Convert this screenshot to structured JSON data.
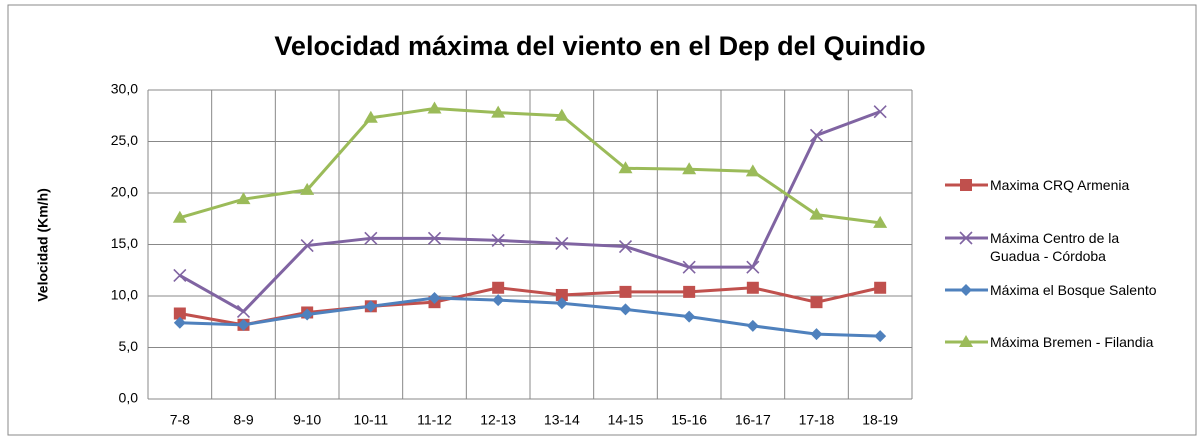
{
  "chart_data": {
    "type": "line",
    "title": "Velocidad máxima del viento en el Dep del Quindio",
    "y_label": "Velocidad  (Km/h)",
    "categories": [
      "7-8",
      "8-9",
      "9-10",
      "10-11",
      "11-12",
      "12-13",
      "13-14",
      "14-15",
      "15-16",
      "16-17",
      "17-18",
      "18-19"
    ],
    "series": [
      {
        "name": "Maxima CRQ Armenia",
        "color": "#c0504d",
        "marker": "square",
        "values": [
          8.3,
          7.2,
          8.4,
          9.0,
          9.4,
          10.8,
          10.1,
          10.4,
          10.4,
          10.8,
          9.4,
          10.8
        ]
      },
      {
        "name": "Máxima Centro de la Guadua - Córdoba",
        "color": "#8064a2",
        "marker": "x",
        "values": [
          12.0,
          8.5,
          14.9,
          15.6,
          15.6,
          15.4,
          15.1,
          14.8,
          12.8,
          12.8,
          25.6,
          27.9
        ]
      },
      {
        "name": "Máxima el Bosque Salento",
        "color": "#4f81bd",
        "marker": "diamond",
        "values": [
          7.4,
          7.2,
          8.2,
          9.0,
          9.8,
          9.6,
          9.3,
          8.7,
          8.0,
          7.1,
          6.3,
          6.1
        ]
      },
      {
        "name": "Máxima Bremen - Filandia",
        "color": "#9bbb59",
        "marker": "triangle",
        "values": [
          17.6,
          19.4,
          20.3,
          27.3,
          28.2,
          27.8,
          27.5,
          22.4,
          22.3,
          22.1,
          17.9,
          17.1
        ]
      }
    ],
    "ylim": [
      0,
      30
    ],
    "yticks": [
      {
        "value": 0,
        "label": "0,0"
      },
      {
        "value": 5,
        "label": "5,0"
      },
      {
        "value": 10,
        "label": "10,0"
      },
      {
        "value": 15,
        "label": "15,0"
      },
      {
        "value": 20,
        "label": "20,0"
      },
      {
        "value": 25,
        "label": "25,0"
      },
      {
        "value": 30,
        "label": "30,0"
      }
    ],
    "grid": true,
    "legend": "right"
  }
}
